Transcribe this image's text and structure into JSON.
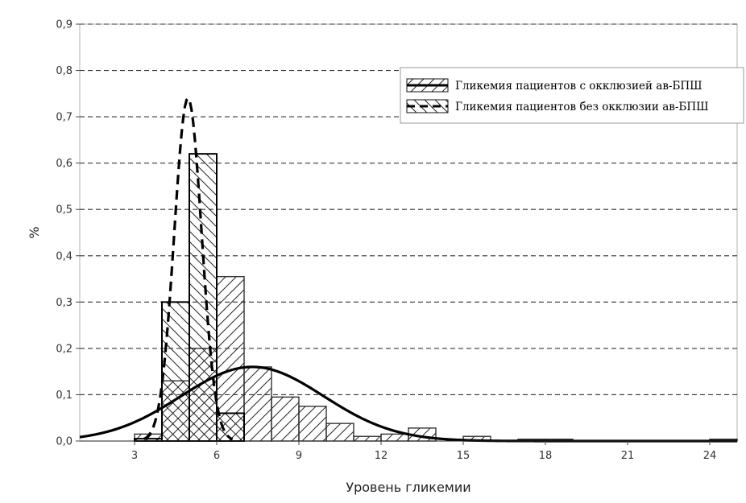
{
  "chart_data": {
    "type": "bar",
    "xlabel": "Уровень гликемии",
    "ylabel": "%",
    "xlim": [
      1,
      25
    ],
    "ylim": [
      0,
      0.9
    ],
    "xticks": [
      3,
      6,
      9,
      12,
      15,
      18,
      21,
      24
    ],
    "xtick_labels": [
      "3",
      "6",
      "9",
      "12",
      "15",
      "18",
      "21",
      "24"
    ],
    "yticks": [
      0,
      0.1,
      0.2,
      0.3,
      0.4,
      0.5,
      0.6,
      0.7,
      0.8,
      0.9
    ],
    "ytick_labels": [
      "0,0",
      "0,1",
      "0,2",
      "0,3",
      "0,4",
      "0,5",
      "0,6",
      "0,7",
      "0,8",
      "0,9"
    ],
    "grid": "horizontal dashed",
    "legend_position": "top-right",
    "series": [
      {
        "name": "Гликемия пациентов с окклюзией ав-БПШ",
        "hatch": "forward",
        "bin_width": 1,
        "bins": [
          {
            "x0": 3,
            "y": 0.015
          },
          {
            "x0": 4,
            "y": 0.13
          },
          {
            "x0": 5,
            "y": 0.2
          },
          {
            "x0": 6,
            "y": 0.355
          },
          {
            "x0": 7,
            "y": 0.16
          },
          {
            "x0": 8,
            "y": 0.095
          },
          {
            "x0": 9,
            "y": 0.075
          },
          {
            "x0": 10,
            "y": 0.038
          },
          {
            "x0": 11,
            "y": 0.01
          },
          {
            "x0": 12,
            "y": 0.015
          },
          {
            "x0": 13,
            "y": 0.028
          },
          {
            "x0": 15,
            "y": 0.01
          },
          {
            "x0": 17,
            "y": 0.004
          },
          {
            "x0": 18,
            "y": 0.004
          },
          {
            "x0": 24,
            "y": 0.004
          }
        ],
        "fit_curve": {
          "style": "solid",
          "mean": 7.3,
          "peak": 0.16,
          "sd": 2.6
        }
      },
      {
        "name": "Гликемия пациентов без окклюзии ав-БПШ",
        "hatch": "backward",
        "bin_width": 1,
        "bins": [
          {
            "x0": 3,
            "y": 0.005
          },
          {
            "x0": 4,
            "y": 0.3
          },
          {
            "x0": 5,
            "y": 0.62
          },
          {
            "x0": 6,
            "y": 0.06
          }
        ],
        "fit_curve": {
          "style": "dashed",
          "mean": 4.95,
          "peak": 0.74,
          "sd": 0.5
        }
      }
    ]
  }
}
